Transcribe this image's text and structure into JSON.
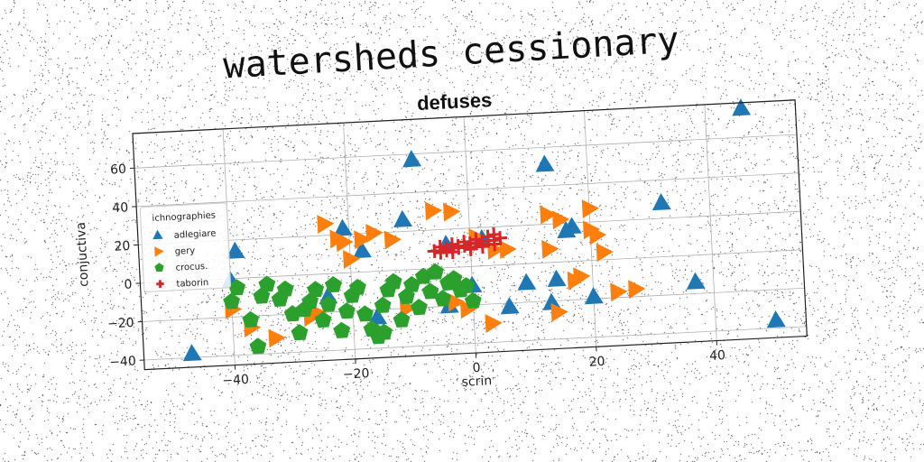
{
  "suptitle": "watersheds cessionary",
  "chart_data": {
    "type": "scatter",
    "title": "defuses",
    "xlabel": "scrin",
    "ylabel": "conjuctiva",
    "xlim": [
      -55,
      55
    ],
    "ylim": [
      -45,
      78
    ],
    "xticks": [
      -40,
      -20,
      0,
      20,
      40
    ],
    "yticks": [
      -40,
      -20,
      0,
      20,
      40,
      60
    ],
    "xtick_labels": [
      "−40",
      "−20",
      "0",
      "20",
      "40"
    ],
    "ytick_labels": [
      "−40",
      "−20",
      "0",
      "20",
      "40",
      "60"
    ],
    "grid": true,
    "legend": {
      "title": "ichnographies",
      "position": "center-left"
    },
    "series": [
      {
        "name": "adlegiare",
        "marker": "triangle-up",
        "color": "#1f77b4",
        "points": [
          [
            -47,
            -38
          ],
          [
            -39,
            14
          ],
          [
            -40,
            -1
          ],
          [
            -24,
            -12
          ],
          [
            -21,
            23
          ],
          [
            -18,
            11
          ],
          [
            -16,
            -24
          ],
          [
            -11,
            26
          ],
          [
            -9,
            57
          ],
          [
            -4,
            12
          ],
          [
            -4,
            -20
          ],
          [
            0,
            -10
          ],
          [
            2,
            14
          ],
          [
            6,
            -22
          ],
          [
            9,
            -10
          ],
          [
            13,
            -21
          ],
          [
            13,
            51
          ],
          [
            14,
            -9
          ],
          [
            16,
            16
          ],
          [
            17,
            18
          ],
          [
            20,
            -19
          ],
          [
            32,
            28
          ],
          [
            37,
            -14
          ],
          [
            46,
            75
          ],
          [
            50,
            -36
          ]
        ]
      },
      {
        "name": "gery",
        "marker": "triangle-right",
        "color": "#ff7f0e",
        "points": [
          [
            -40,
            -16
          ],
          [
            -37,
            -26
          ],
          [
            -33,
            -32
          ],
          [
            -27,
            -22
          ],
          [
            -26,
            -20
          ],
          [
            -24,
            26
          ],
          [
            -22,
            18
          ],
          [
            -21,
            16
          ],
          [
            -20,
            7
          ],
          [
            -18,
            17
          ],
          [
            -16,
            20
          ],
          [
            -13,
            16
          ],
          [
            -11,
            -20
          ],
          [
            -6,
            30
          ],
          [
            -3,
            29
          ],
          [
            -3,
            -18
          ],
          [
            -1,
            -22
          ],
          [
            1,
            15
          ],
          [
            3,
            -30
          ],
          [
            4,
            8
          ],
          [
            6,
            8
          ],
          [
            13,
            25
          ],
          [
            13,
            7
          ],
          [
            14,
            -26
          ],
          [
            15,
            22
          ],
          [
            17,
            -10
          ],
          [
            18,
            -8
          ],
          [
            20,
            27
          ],
          [
            20,
            16
          ],
          [
            21,
            13
          ],
          [
            22,
            4
          ],
          [
            24,
            -17
          ],
          [
            27,
            -16
          ]
        ]
      },
      {
        "name": "crocus.",
        "marker": "pentagon",
        "color": "#2ca02c",
        "points": [
          [
            -40,
            -12
          ],
          [
            -39,
            -5
          ],
          [
            -37,
            -22
          ],
          [
            -36,
            -36
          ],
          [
            -35,
            -10
          ],
          [
            -34,
            -4
          ],
          [
            -32,
            -12
          ],
          [
            -31,
            -7
          ],
          [
            -30,
            -20
          ],
          [
            -29,
            -30
          ],
          [
            -28,
            -18
          ],
          [
            -27,
            -14
          ],
          [
            -26,
            -8
          ],
          [
            -25,
            -24
          ],
          [
            -24,
            -16
          ],
          [
            -23,
            -6
          ],
          [
            -22,
            -30
          ],
          [
            -21,
            -20
          ],
          [
            -20,
            -12
          ],
          [
            -19,
            -8
          ],
          [
            -18,
            -22
          ],
          [
            -17,
            -30
          ],
          [
            -16,
            -34
          ],
          [
            -15,
            -18
          ],
          [
            -14,
            -10
          ],
          [
            -13,
            -6
          ],
          [
            -12,
            -26
          ],
          [
            -11,
            -14
          ],
          [
            -10,
            -8
          ],
          [
            -9,
            -20
          ],
          [
            -8,
            -4
          ],
          [
            -7,
            -12
          ],
          [
            -6,
            -2
          ],
          [
            -5,
            -16
          ],
          [
            -4,
            -8
          ],
          [
            -3,
            -6
          ],
          [
            -2,
            -12
          ],
          [
            -1,
            -10
          ],
          [
            0,
            -18
          ],
          [
            -15,
            -32
          ]
        ]
      },
      {
        "name": "taborin",
        "marker": "plus",
        "color": "#d62728",
        "points": [
          [
            -5,
            11
          ],
          [
            -4,
            10
          ],
          [
            -3,
            12
          ],
          [
            -2,
            11
          ],
          [
            -1,
            13
          ],
          [
            0,
            12
          ],
          [
            1,
            14
          ],
          [
            2,
            13
          ],
          [
            3,
            15
          ],
          [
            4,
            16
          ],
          [
            -6,
            9
          ],
          [
            -5,
            8
          ],
          [
            -4,
            9
          ],
          [
            -3,
            10
          ],
          [
            -2,
            10
          ],
          [
            -1,
            11
          ],
          [
            0,
            10
          ],
          [
            1,
            12
          ],
          [
            2,
            11
          ],
          [
            3,
            13
          ],
          [
            4,
            13
          ],
          [
            5,
            14
          ],
          [
            -3,
            8
          ],
          [
            0,
            9
          ],
          [
            2,
            10
          ],
          [
            4,
            11
          ]
        ]
      }
    ]
  }
}
